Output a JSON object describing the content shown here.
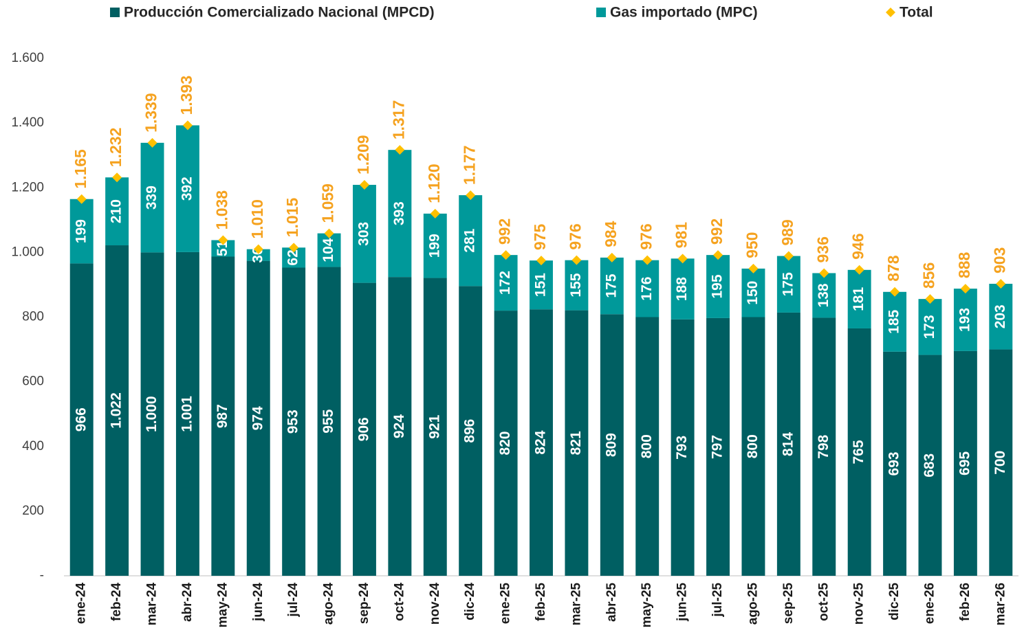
{
  "chart_data": {
    "type": "bar",
    "stacked": true,
    "categories": [
      "ene-24",
      "feb-24",
      "mar-24",
      "abr-24",
      "may-24",
      "jun-24",
      "jul-24",
      "ago-24",
      "sep-24",
      "oct-24",
      "nov-24",
      "dic-24",
      "ene-25",
      "feb-25",
      "mar-25",
      "abr-25",
      "may-25",
      "jun-25",
      "jul-25",
      "ago-25",
      "sep-25",
      "oct-25",
      "nov-25",
      "dic-25",
      "ene-26",
      "feb-26",
      "mar-26"
    ],
    "series": [
      {
        "name": "Producción Comercializado Nacional (MPCD)",
        "color": "#005f62",
        "values": [
          966,
          1022,
          1000,
          1001,
          987,
          974,
          953,
          955,
          906,
          924,
          921,
          896,
          820,
          824,
          821,
          809,
          800,
          793,
          797,
          800,
          814,
          798,
          765,
          693,
          683,
          695,
          700
        ],
        "value_labels": [
          "966",
          "1.022",
          "1.000",
          "1.001",
          "987",
          "974",
          "953",
          "955",
          "906",
          "924",
          "921",
          "896",
          "820",
          "824",
          "821",
          "809",
          "800",
          "793",
          "797",
          "800",
          "814",
          "798",
          "765",
          "693",
          "683",
          "695",
          "700"
        ]
      },
      {
        "name": "Gas importado (MPC)",
        "color": "#00999a",
        "values": [
          199,
          210,
          339,
          392,
          51,
          36,
          62,
          104,
          303,
          393,
          199,
          281,
          172,
          151,
          155,
          175,
          176,
          188,
          195,
          150,
          175,
          138,
          181,
          185,
          173,
          193,
          203
        ]
      },
      {
        "name": "Total",
        "color": "#ffc000",
        "marker": "diamond",
        "label_color": "#f5a21f",
        "values": [
          1165,
          1232,
          1339,
          1393,
          1038,
          1010,
          1015,
          1059,
          1209,
          1317,
          1120,
          1177,
          992,
          975,
          976,
          984,
          976,
          981,
          992,
          950,
          989,
          936,
          946,
          878,
          856,
          888,
          903
        ],
        "value_labels": [
          "1.165",
          "1.232",
          "1.339",
          "1.393",
          "1.038",
          "1.010",
          "1.015",
          "1.059",
          "1.209",
          "1.317",
          "1.120",
          "1.177",
          "992",
          "975",
          "976",
          "984",
          "976",
          "981",
          "992",
          "950",
          "989",
          "936",
          "946",
          "878",
          "856",
          "888",
          "903"
        ]
      }
    ],
    "ylim": [
      0,
      1600
    ],
    "yticks": [
      {
        "value": 0,
        "label": "-"
      },
      200,
      400,
      600,
      800,
      {
        "value": 1000,
        "label": "1.000"
      },
      {
        "value": 1200,
        "label": "1.200"
      },
      {
        "value": 1400,
        "label": "1.400"
      },
      {
        "value": 1600,
        "label": "1.600"
      }
    ]
  }
}
